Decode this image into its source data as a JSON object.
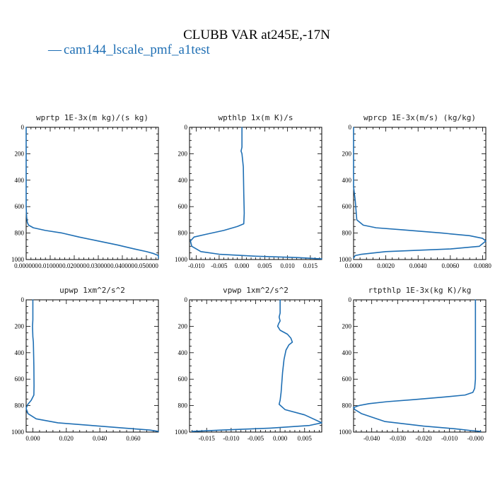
{
  "figure": {
    "title": "CLUBB VAR at245E,-17N",
    "legend": [
      {
        "marker": "—",
        "label": "cam144_lscale_pmf_a1test",
        "color": "#1f6fb4"
      }
    ]
  },
  "chart_data": [
    {
      "type": "line",
      "title": "wprtp  1E-3x(m kg)/(s kg)",
      "xlim": [
        0.0,
        0.055
      ],
      "ylim": [
        1000,
        0
      ],
      "xticks": [
        0.0,
        0.01,
        0.02,
        0.03,
        0.04,
        0.05
      ],
      "xtick_labels": [
        "0.000000",
        "0.010000",
        "0.020000",
        "0.030000",
        "0.040000",
        "0.050000"
      ],
      "yticks": [
        0,
        200,
        400,
        600,
        800,
        1000
      ],
      "ytick_labels": [
        "0",
        "200",
        "400",
        "600",
        "800",
        "1000"
      ],
      "series": [
        {
          "color": "#1f6fb4",
          "x": [
            0.0,
            0.0,
            0.0002,
            0.0005,
            0.001,
            0.003,
            0.008,
            0.015,
            0.022,
            0.03,
            0.038,
            0.045,
            0.05,
            0.053,
            0.055,
            0.055
          ],
          "y": [
            0,
            600,
            680,
            720,
            740,
            760,
            780,
            800,
            830,
            860,
            890,
            920,
            940,
            955,
            970,
            990
          ]
        }
      ]
    },
    {
      "type": "line",
      "title": "wpthlp  1x(m K)/s",
      "xlim": [
        -0.0115,
        0.0175
      ],
      "ylim": [
        1000,
        0
      ],
      "xticks": [
        -0.01,
        -0.005,
        0.0,
        0.005,
        0.01,
        0.015
      ],
      "xtick_labels": [
        "-0.010",
        "-0.005",
        "0.000",
        "0.005",
        "0.010",
        "0.015"
      ],
      "yticks": [
        0,
        200,
        400,
        600,
        800,
        1000
      ],
      "ytick_labels": [
        "0",
        "200",
        "400",
        "600",
        "800",
        "1000"
      ],
      "series": [
        {
          "color": "#1f6fb4",
          "x": [
            0.0,
            0.0,
            -0.0002,
            0.0,
            0.0003,
            0.0004,
            0.0005,
            0.0004,
            -0.001,
            -0.004,
            -0.008,
            -0.0105,
            -0.0113,
            -0.011,
            -0.009,
            -0.005,
            0.003,
            0.012,
            0.0175
          ],
          "y": [
            0,
            150,
            180,
            200,
            300,
            500,
            650,
            730,
            750,
            780,
            810,
            830,
            860,
            900,
            940,
            960,
            975,
            985,
            995
          ]
        }
      ]
    },
    {
      "type": "line",
      "title": "wprcp  1E-3x(m/s) (kg/kg)",
      "xlim": [
        0.0,
        0.0082
      ],
      "ylim": [
        1000,
        0
      ],
      "xticks": [
        0.0,
        0.002,
        0.004,
        0.006,
        0.008
      ],
      "xtick_labels": [
        "0.0000",
        "0.0020",
        "0.0040",
        "0.0060",
        "0.0080"
      ],
      "yticks": [
        0,
        200,
        400,
        600,
        800,
        1000
      ],
      "ytick_labels": [
        "0",
        "200",
        "400",
        "600",
        "800",
        "1000"
      ],
      "series": [
        {
          "color": "#1f6fb4",
          "x": [
            0.0,
            0.0,
            0.0001,
            0.0002,
            0.0006,
            0.0014,
            0.003,
            0.0055,
            0.0072,
            0.008,
            0.0082,
            0.0078,
            0.006,
            0.002,
            0.0005,
            0.0001,
            0.0
          ],
          "y": [
            0,
            450,
            550,
            700,
            740,
            760,
            775,
            800,
            820,
            840,
            860,
            900,
            920,
            940,
            960,
            970,
            990
          ]
        }
      ]
    },
    {
      "type": "line",
      "title": "upwp  1xm^2/s^2",
      "xlim": [
        -0.004,
        0.075
      ],
      "ylim": [
        1000,
        0
      ],
      "xticks": [
        0.0,
        0.02,
        0.04,
        0.06
      ],
      "xtick_labels": [
        "0.000",
        "0.020",
        "0.040",
        "0.060"
      ],
      "yticks": [
        0,
        200,
        400,
        600,
        800,
        1000
      ],
      "ytick_labels": [
        "0",
        "200",
        "400",
        "600",
        "800",
        "1000"
      ],
      "series": [
        {
          "color": "#1f6fb4",
          "x": [
            0.0,
            0.0,
            -0.0002,
            0.0,
            0.0003,
            0.0006,
            0.0007,
            0.0006,
            -0.001,
            -0.003,
            -0.004,
            -0.003,
            0.002,
            0.015,
            0.035,
            0.055,
            0.07,
            0.075
          ],
          "y": [
            0,
            150,
            200,
            280,
            320,
            500,
            650,
            720,
            760,
            790,
            820,
            860,
            900,
            930,
            950,
            970,
            985,
            995
          ]
        }
      ]
    },
    {
      "type": "line",
      "title": "vpwp  1xm^2/s^2",
      "xlim": [
        -0.0185,
        0.0085
      ],
      "ylim": [
        1000,
        0
      ],
      "xticks": [
        -0.015,
        -0.01,
        -0.005,
        0.0,
        0.005
      ],
      "xtick_labels": [
        "-0.015",
        "-0.010",
        "-0.005",
        "0.000",
        "0.005"
      ],
      "yticks": [
        0,
        200,
        400,
        600,
        800,
        1000
      ],
      "ytick_labels": [
        "0",
        "200",
        "400",
        "600",
        "800",
        "1000"
      ],
      "series": [
        {
          "color": "#1f6fb4",
          "x": [
            0.0,
            0.0,
            -0.0002,
            0.0,
            -0.0003,
            -0.0005,
            0.0,
            0.0015,
            0.0022,
            0.0025,
            0.0018,
            0.0012,
            0.0008,
            0.0005,
            0.0002,
            0.0,
            -0.0002,
            0.001,
            0.005,
            0.0085,
            0.006,
            -0.002,
            -0.012,
            -0.018
          ],
          "y": [
            0,
            100,
            130,
            160,
            180,
            200,
            230,
            260,
            290,
            320,
            340,
            380,
            450,
            550,
            700,
            760,
            790,
            830,
            870,
            930,
            950,
            970,
            985,
            995
          ]
        }
      ]
    },
    {
      "type": "line",
      "title": "rtpthlp  1E-3x(kg K)/kg",
      "xlim": [
        -0.047,
        0.004
      ],
      "ylim": [
        1000,
        0
      ],
      "xticks": [
        -0.04,
        -0.03,
        -0.02,
        -0.01,
        0.0
      ],
      "xtick_labels": [
        "-0.040",
        "-0.030",
        "-0.020",
        "-0.010",
        "-0.000"
      ],
      "yticks": [
        0,
        200,
        400,
        600,
        800,
        1000
      ],
      "ytick_labels": [
        "0",
        "200",
        "400",
        "600",
        "800",
        "1000"
      ],
      "series": [
        {
          "color": "#1f6fb4",
          "x": [
            0.0,
            0.0,
            -0.0003,
            -0.001,
            -0.004,
            -0.012,
            -0.024,
            -0.034,
            -0.041,
            -0.045,
            -0.047,
            -0.0465,
            -0.044,
            -0.035,
            -0.02,
            -0.008,
            -0.002,
            0.002
          ],
          "y": [
            0,
            600,
            670,
            700,
            720,
            735,
            755,
            770,
            785,
            800,
            815,
            830,
            860,
            920,
            955,
            975,
            988,
            995
          ]
        }
      ]
    }
  ]
}
